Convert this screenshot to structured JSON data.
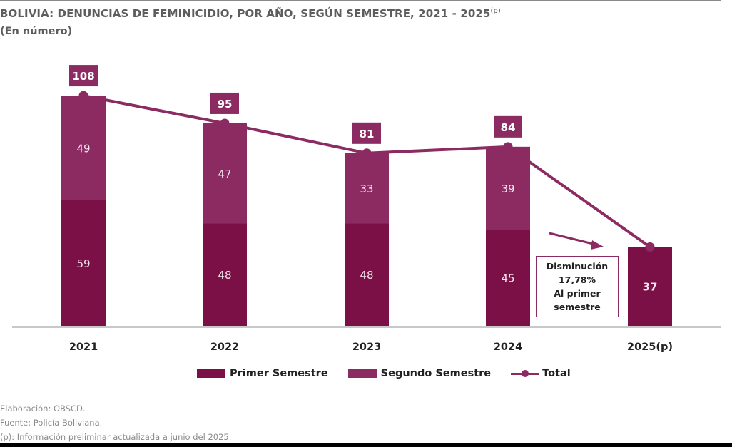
{
  "header": {
    "title": "BOLIVIA: DENUNCIAS DE FEMINICIDIO, POR AÑO, SEGÚN SEMESTRE, 2021 - 2025",
    "title_superscript": "(p)",
    "subtitle": "(En número)"
  },
  "colors": {
    "primer": "#7a1045",
    "segundo": "#8c2a62",
    "total": "#8c2a62",
    "baseline": "#c8c8c8"
  },
  "chart_data": {
    "type": "bar",
    "stacked": true,
    "title": "BOLIVIA: DENUNCIAS DE FEMINICIDIO, POR AÑO, SEGÚN SEMESTRE, 2021 - 2025(p)",
    "subtitle": "(En número)",
    "xlabel": "",
    "ylabel": "",
    "ylim": [
      0,
      108
    ],
    "grid": false,
    "legend_position": "bottom",
    "categories": [
      "2021",
      "2022",
      "2023",
      "2024",
      "2025(p)"
    ],
    "series": [
      {
        "name": "Primer Semestre",
        "type": "bar",
        "values": [
          59,
          48,
          48,
          45,
          37
        ]
      },
      {
        "name": "Segundo Semestre",
        "type": "bar",
        "values": [
          49,
          47,
          33,
          39,
          null
        ]
      },
      {
        "name": "Total",
        "type": "line",
        "values": [
          108,
          95,
          81,
          84,
          37
        ]
      }
    ],
    "annotation": {
      "lines": [
        "Disminución",
        "17,78%",
        "Al primer",
        "semestre"
      ],
      "arrow": "points-to-2025"
    }
  },
  "legend": {
    "items": [
      {
        "label": "Primer Semestre",
        "kind": "swatch",
        "color_key": "primer"
      },
      {
        "label": "Segundo Semestre",
        "kind": "swatch",
        "color_key": "segundo"
      },
      {
        "label": "Total",
        "kind": "line",
        "color_key": "total"
      }
    ]
  },
  "notes": [
    "Elaboración: OBSCD.",
    "Fuente: Policía Boliviana.",
    "(p): Información preliminar actualizada a junio del 2025."
  ]
}
